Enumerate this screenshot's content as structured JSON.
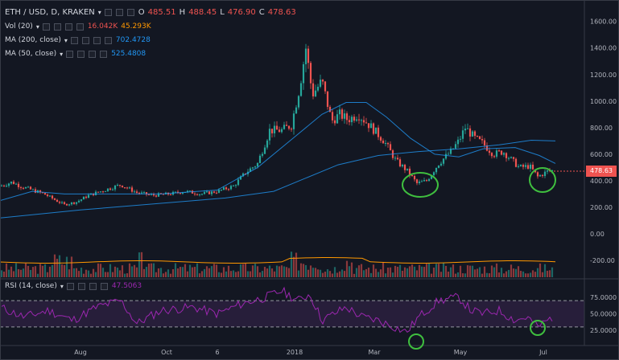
{
  "symbol": {
    "name": "ETH / USD, D, KRAKEN",
    "open_label": "O",
    "open": "485.51",
    "high_label": "H",
    "high": "488.45",
    "low_label": "L",
    "low": "476.90",
    "close_label": "C",
    "close": "478.63"
  },
  "indicators": {
    "volume": {
      "name": "Vol (20)",
      "value1": "16.042K",
      "value2": "45.293K"
    },
    "ma200": {
      "name": "MA (200, close)",
      "value": "702.4728"
    },
    "ma50": {
      "name": "MA (50, close)",
      "value": "525.4808"
    },
    "rsi": {
      "name": "RSI (14, close)",
      "value": "47.5063"
    }
  },
  "price_tag": "478.63",
  "price_axis": [
    "1600.00",
    "1400.00",
    "1200.00",
    "1000.00",
    "800.00",
    "600.00",
    "400.00",
    "200.00",
    "0.00",
    "-200.00"
  ],
  "rsi_axis": [
    "75.0000",
    "50.0000",
    "25.0000"
  ],
  "time_axis": [
    "Aug",
    "Oct",
    "6",
    "2018",
    "Mar",
    "May",
    "Jul"
  ],
  "colors": {
    "background": "#131722",
    "up": "#26a69a",
    "down": "#ef5350",
    "ma200": "#2196f3",
    "ma50": "#2196f3",
    "rsi": "#9c27b0",
    "annotation": "#3fbf3f"
  },
  "chart_data": {
    "type": "candlestick",
    "price_range": [
      -300,
      1650
    ],
    "rsi_range": [
      0,
      100
    ],
    "annotations": [
      "green-circle-mar-low",
      "green-circle-jun-low",
      "green-circle-rsi-mar",
      "green-circle-rsi-jun"
    ]
  }
}
